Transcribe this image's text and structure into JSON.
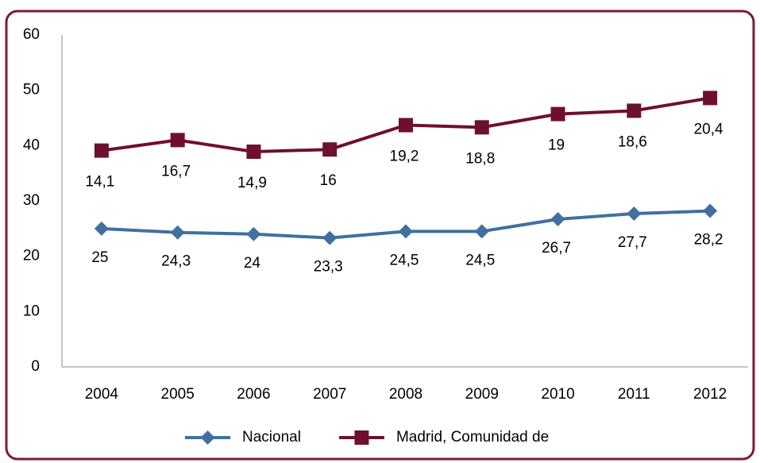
{
  "chart_data": {
    "type": "line",
    "stacked": true,
    "categories": [
      "2004",
      "2005",
      "2006",
      "2007",
      "2008",
      "2009",
      "2010",
      "2011",
      "2012"
    ],
    "series": [
      {
        "name": "Nacional",
        "color": "#41709f",
        "marker": "diamond",
        "values": [
          25,
          24.3,
          24,
          23.3,
          24.5,
          24.5,
          26.7,
          27.7,
          28.2
        ],
        "value_labels": [
          "25",
          "24,3",
          "24",
          "23,3",
          "24,5",
          "24,5",
          "26,7",
          "27,7",
          "28,2"
        ]
      },
      {
        "name": "Madrid, Comunidad de",
        "color": "#6d1030",
        "marker": "square",
        "values": [
          14.1,
          16.7,
          14.9,
          16,
          19.2,
          18.8,
          19,
          18.6,
          20.4
        ],
        "value_labels": [
          "14,1",
          "16,7",
          "14,9",
          "16",
          "19,2",
          "18,8",
          "19",
          "18,6",
          "20,4"
        ]
      }
    ],
    "ylim": [
      0,
      60
    ],
    "yticks": [
      0,
      10,
      20,
      30,
      40,
      50,
      60
    ],
    "grid": false,
    "legend": "bottom"
  }
}
